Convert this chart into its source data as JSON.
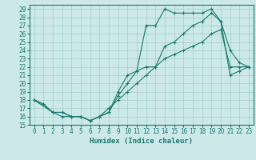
{
  "title": "",
  "xlabel": "Humidex (Indice chaleur)",
  "xlim": [
    -0.5,
    23.5
  ],
  "ylim": [
    15,
    29.5
  ],
  "yticks": [
    15,
    16,
    17,
    18,
    19,
    20,
    21,
    22,
    23,
    24,
    25,
    26,
    27,
    28,
    29
  ],
  "xticks": [
    0,
    1,
    2,
    3,
    4,
    5,
    6,
    7,
    8,
    9,
    10,
    11,
    12,
    13,
    14,
    15,
    16,
    17,
    18,
    19,
    20,
    21,
    22,
    23
  ],
  "line_color": "#1a7a6e",
  "bg_color": "#cce8e8",
  "grid_color": "#a0cece",
  "line1_x": [
    0,
    1,
    2,
    3,
    4,
    5,
    6,
    7,
    8,
    9,
    10,
    11,
    12,
    13,
    14,
    15,
    16,
    17,
    18,
    19,
    20,
    21,
    22,
    23
  ],
  "line1_y": [
    18,
    17.5,
    16.5,
    16.5,
    16,
    16,
    15.5,
    16,
    16.5,
    19,
    21,
    21.5,
    27,
    27,
    29,
    28.5,
    28.5,
    28.5,
    28.5,
    29,
    27.5,
    24,
    22.5,
    22
  ],
  "line2_x": [
    0,
    1,
    2,
    3,
    4,
    5,
    6,
    7,
    8,
    9,
    10,
    11,
    12,
    13,
    14,
    15,
    16,
    17,
    18,
    19,
    20,
    21,
    22,
    23
  ],
  "line2_y": [
    18,
    17.5,
    16.5,
    16,
    16,
    16,
    15.5,
    16,
    17,
    18,
    19,
    20,
    21,
    22,
    23,
    23.5,
    24,
    24.5,
    25,
    26,
    26.5,
    22,
    22,
    22
  ],
  "line3_x": [
    0,
    2,
    3,
    4,
    5,
    6,
    7,
    8,
    9,
    10,
    11,
    12,
    13,
    14,
    15,
    16,
    17,
    18,
    19,
    20,
    21,
    22,
    23
  ],
  "line3_y": [
    18,
    16.5,
    16.5,
    16,
    16,
    15.5,
    16,
    16.5,
    18.5,
    20,
    21.5,
    22,
    22,
    24.5,
    25,
    26,
    27,
    27.5,
    28.5,
    27.5,
    21,
    21.5,
    22
  ],
  "label_fontsize": 5.5,
  "xlabel_fontsize": 6.5
}
